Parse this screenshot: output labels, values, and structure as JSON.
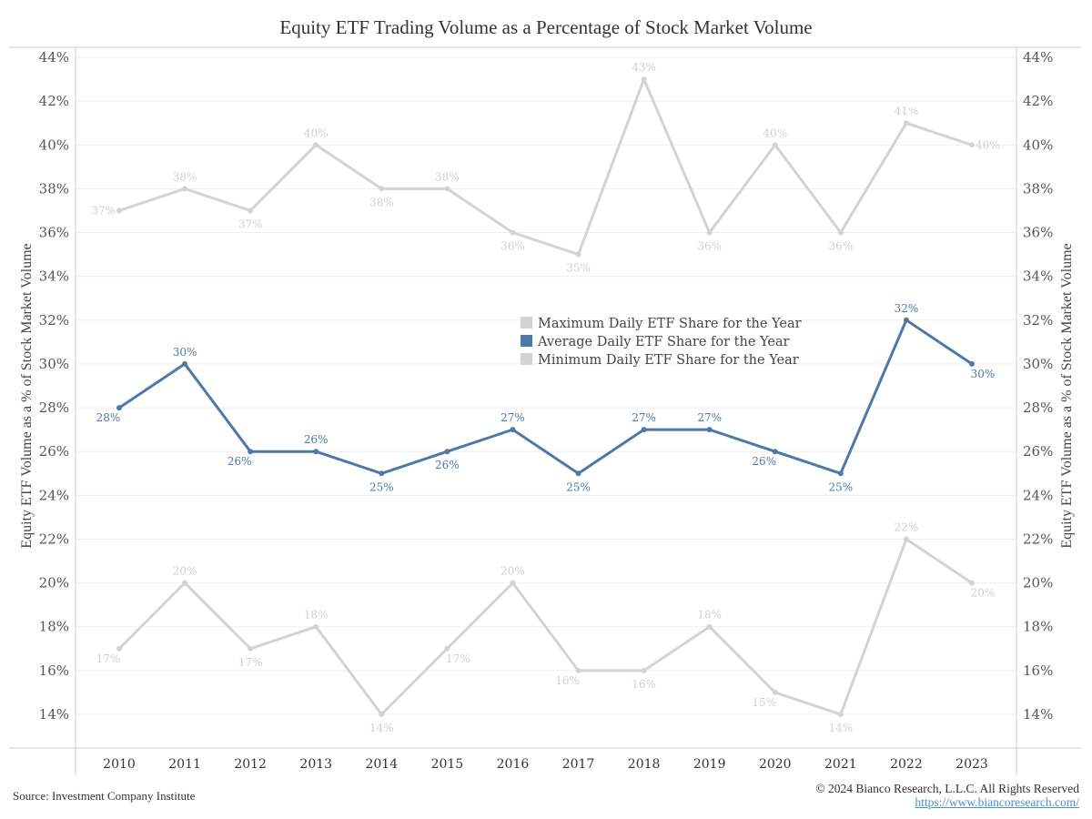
{
  "chart_data": {
    "type": "line",
    "title": "Equity ETF Trading Volume as a Percentage of Stock Market Volume",
    "xlabel": "",
    "ylabel": "Equity ETF Volume as a % of Stock Market Volume",
    "ylabel_right": "Equity ETF Volume as a % of Stock Market Volume",
    "ylim": [
      13,
      44.5
    ],
    "yticks": [
      44,
      42,
      40,
      38,
      36,
      34,
      32,
      30,
      28,
      26,
      24,
      22,
      20,
      18,
      16,
      14
    ],
    "ytick_labels": [
      "44%",
      "42%",
      "40%",
      "38%",
      "36%",
      "34%",
      "32%",
      "30%",
      "28%",
      "26%",
      "24%",
      "22%",
      "20%",
      "18%",
      "16%",
      "14%"
    ],
    "grid": true,
    "legend_position": "center",
    "x": [
      "2010",
      "2011",
      "2012",
      "2013",
      "2014",
      "2015",
      "2016",
      "2017",
      "2018",
      "2019",
      "2020",
      "2021",
      "2022",
      "2023"
    ],
    "series": [
      {
        "name": "Maximum Daily ETF Share for the Year",
        "color": "#d3d3d3",
        "label_color": "#cfcfcf",
        "values": [
          37,
          38,
          37,
          40,
          38,
          38,
          36,
          35,
          43,
          36,
          40,
          36,
          41,
          40
        ],
        "labels": [
          "37%",
          "38%",
          "37%",
          "40%",
          "38%",
          "38%",
          "36%",
          "35%",
          "43%",
          "36%",
          "40%",
          "36%",
          "41%",
          "40%"
        ],
        "label_pos": [
          "left",
          "above",
          "below",
          "above",
          "below",
          "above",
          "below",
          "below",
          "above",
          "below",
          "above",
          "below",
          "above",
          "right"
        ]
      },
      {
        "name": "Average Daily ETF Share for the Year",
        "color": "#4e79a7",
        "label_color": "#4e79a7",
        "values": [
          28,
          30,
          26,
          26,
          25,
          26,
          27,
          25,
          27,
          27,
          26,
          25,
          32,
          30
        ],
        "labels": [
          "28%",
          "30%",
          "26%",
          "26%",
          "25%",
          "26%",
          "27%",
          "25%",
          "27%",
          "27%",
          "26%",
          "25%",
          "32%",
          "30%"
        ],
        "label_pos": [
          "below-left",
          "above",
          "below-left",
          "above",
          "below",
          "below",
          "above",
          "below",
          "above",
          "above",
          "below-left",
          "below",
          "above",
          "below-right"
        ]
      },
      {
        "name": "Minimum Daily ETF Share for the Year",
        "color": "#d3d3d3",
        "label_color": "#cfcfcf",
        "values": [
          17,
          20,
          17,
          18,
          14,
          17,
          20,
          16,
          16,
          18,
          15,
          14,
          22,
          20
        ],
        "labels": [
          "17%",
          "20%",
          "17%",
          "18%",
          "14%",
          "17%",
          "20%",
          "16%",
          "16%",
          "18%",
          "15%",
          "14%",
          "22%",
          "20%"
        ],
        "label_pos": [
          "below-left",
          "above",
          "below",
          "above",
          "below",
          "below-right",
          "above",
          "below-left",
          "below",
          "above",
          "below-left",
          "below",
          "above",
          "below-right"
        ]
      }
    ]
  },
  "footer": {
    "source": "Source: Investment Company Institute",
    "copyright": "© 2024 Bianco Research, L.L.C. All Rights Reserved",
    "url": "https://www.biancoresearch.com/"
  }
}
